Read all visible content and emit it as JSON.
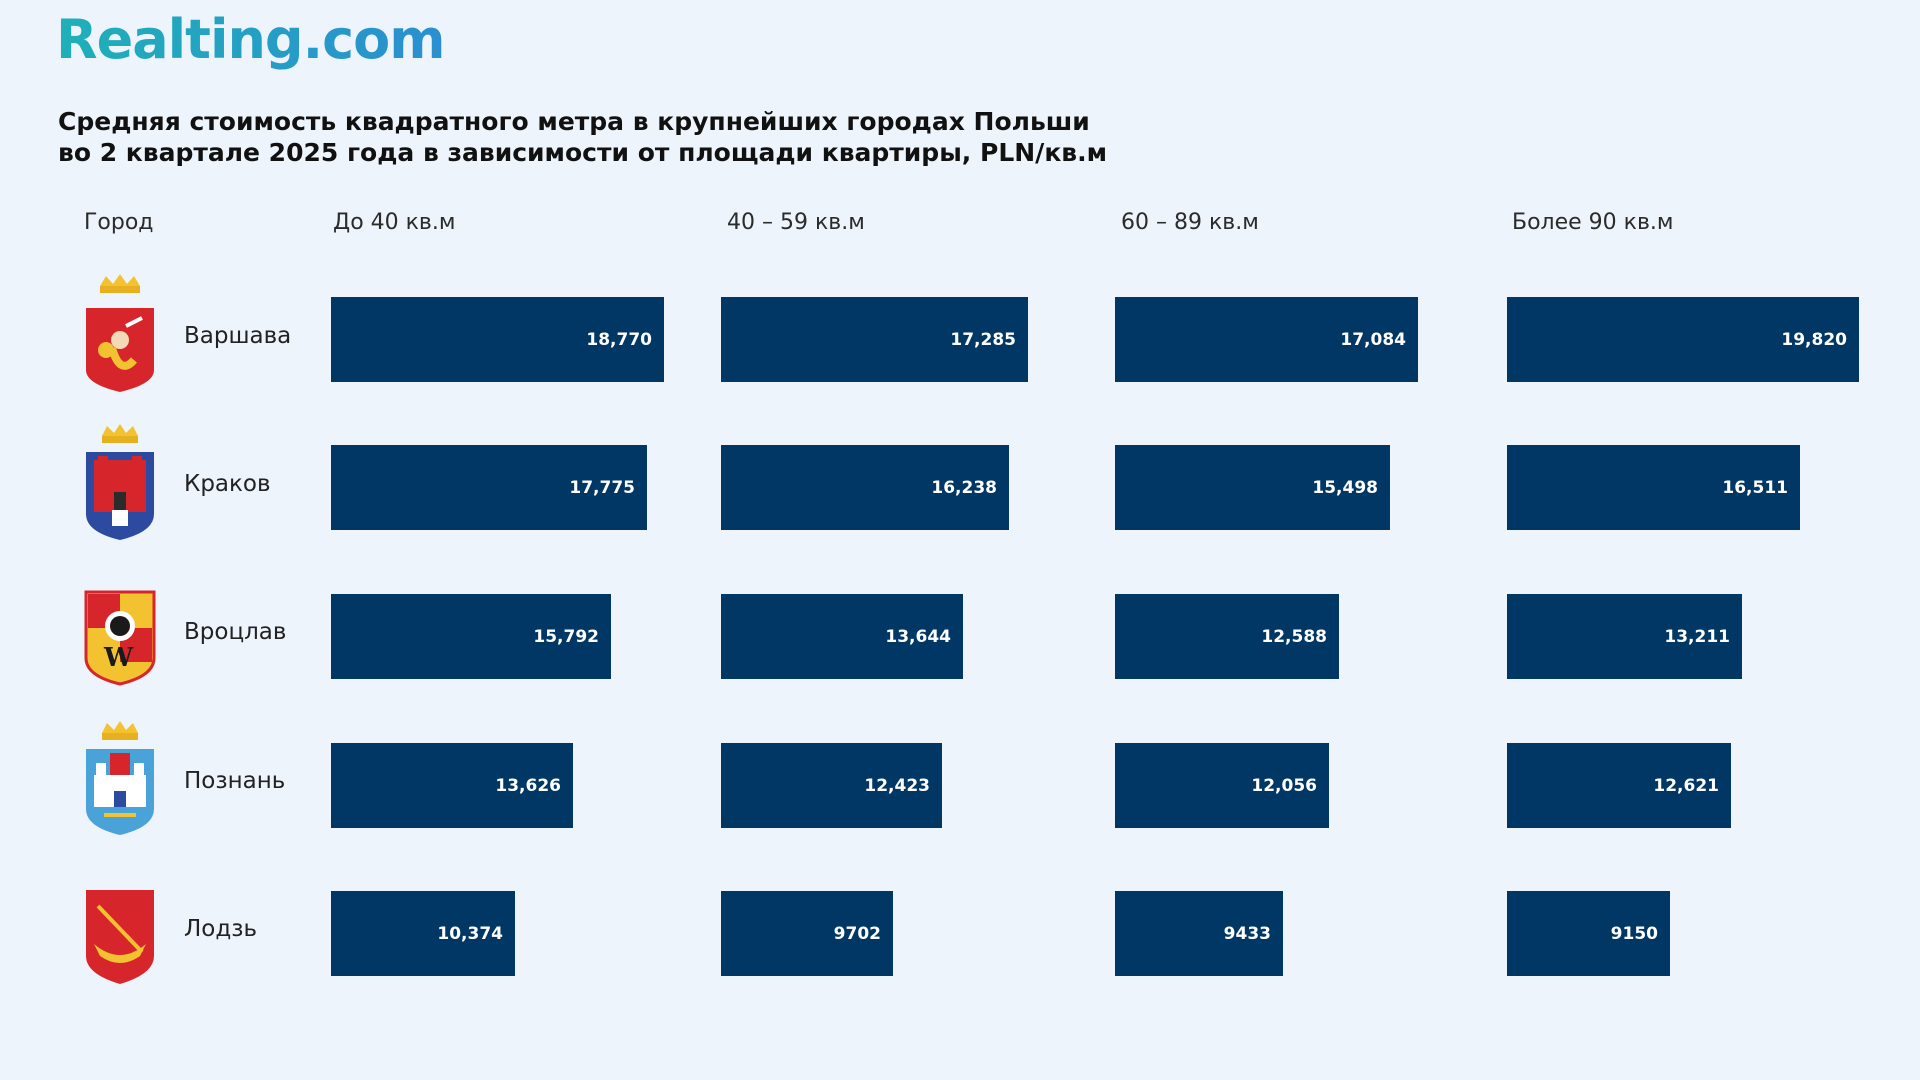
{
  "brand": {
    "logo_text": "Realting.com"
  },
  "chart_data": {
    "type": "bar",
    "title_lines": [
      "Средняя стоимость  квадратного метра в крупнейших городах Польши",
      "во 2 квартале 2025 года в зависимости от площади квартиры, PLN/кв.м"
    ],
    "row_header": "Город",
    "categories": [
      "Варшава",
      "Краков",
      "Вроцлав",
      "Познань",
      "Лодзь"
    ],
    "series": [
      {
        "name": "До 40 кв.м",
        "values": [
          18770,
          17775,
          15792,
          13626,
          10374
        ],
        "labels": [
          "18,770",
          "17,775",
          "15,792",
          "13,626",
          "10,374"
        ]
      },
      {
        "name": "40 – 59 кв.м",
        "values": [
          17285,
          16238,
          13644,
          12423,
          9702
        ],
        "labels": [
          "17,285",
          "16,238",
          "13,644",
          "12,423",
          "9702"
        ]
      },
      {
        "name": "60 – 89 кв.м",
        "values": [
          17084,
          15498,
          12588,
          12056,
          9433
        ],
        "labels": [
          "17,084",
          "15,498",
          "12,588",
          "12,056",
          "9433"
        ]
      },
      {
        "name": "Более 90 кв.м",
        "values": [
          19820,
          16511,
          13211,
          12621,
          9150
        ],
        "labels": [
          "19,820",
          "16,511",
          "13,211",
          "12,621",
          "9150"
        ]
      }
    ],
    "bar_color": "#003764",
    "crests": [
      "warsaw-crest-icon",
      "krakow-crest-icon",
      "wroclaw-crest-icon",
      "poznan-crest-icon",
      "lodz-crest-icon"
    ]
  }
}
